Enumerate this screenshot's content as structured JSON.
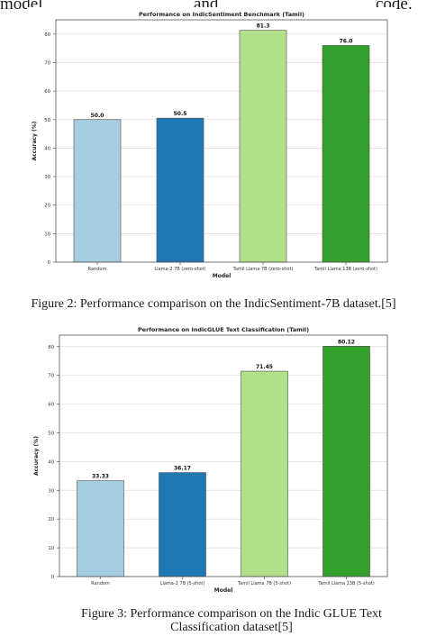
{
  "header_fragment": {
    "left": "model",
    "middle": "and",
    "right": "code."
  },
  "figures": [
    {
      "caption": "Figure 2: Performance comparison on the IndicSentiment-7B dataset.[5]"
    },
    {
      "caption_line1": "Figure 3: Performance comparison on the Indic GLUE Text",
      "caption_line2": "Classification dataset[5]"
    }
  ],
  "chart_data": [
    {
      "type": "bar",
      "title": "Performance on IndicSentiment Benchmark (Tamil)",
      "xlabel": "Model",
      "ylabel": "Accuracy (%)",
      "categories": [
        "Random",
        "Llama-2 7B (zero-shot)",
        "Tamil Llama 7B (zero-shot)",
        "Tamil Llama 13B (zero-shot)"
      ],
      "values": [
        50.0,
        50.5,
        81.3,
        76.0
      ],
      "value_labels": [
        "50.0",
        "50.5",
        "81.3",
        "76.0"
      ],
      "colors": [
        "#a6cee3",
        "#1f78b4",
        "#b2df8a",
        "#33a02c"
      ],
      "ylim": [
        0,
        85
      ],
      "yticks": [
        0,
        10,
        20,
        30,
        40,
        50,
        60,
        70,
        80
      ],
      "grid": true
    },
    {
      "type": "bar",
      "title": "Performance on IndicGLUE Text Classification (Tamil)",
      "xlabel": "Model",
      "ylabel": "Accuracy (%)",
      "categories": [
        "Random",
        "Llama-2 7B (5-shot)",
        "Tamil Llama 7B (5-shot)",
        "Tamil Llama 13B (5-shot)"
      ],
      "values": [
        33.33,
        36.17,
        71.45,
        80.12
      ],
      "value_labels": [
        "33.33",
        "36.17",
        "71.45",
        "80.12"
      ],
      "colors": [
        "#a6cee3",
        "#1f78b4",
        "#b2df8a",
        "#33a02c"
      ],
      "ylim": [
        0,
        84
      ],
      "yticks": [
        0,
        10,
        20,
        30,
        40,
        50,
        60,
        70,
        80
      ],
      "grid": true
    }
  ]
}
